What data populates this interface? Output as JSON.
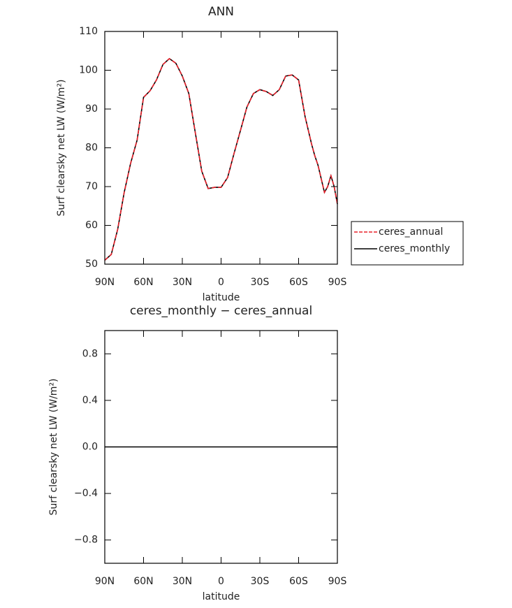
{
  "chart_data": [
    {
      "type": "line",
      "title": "ANN",
      "xlabel": "latitude",
      "ylabel": "Surf clearsky net LW (W/m²)",
      "x": [
        90,
        85,
        80,
        75,
        70,
        65,
        60,
        55,
        50,
        45,
        40,
        35,
        30,
        25,
        20,
        15,
        10,
        5,
        0,
        -5,
        -10,
        -15,
        -20,
        -25,
        -30,
        -35,
        -40,
        -45,
        -50,
        -55,
        -60,
        -65,
        -70,
        -72.5,
        -75,
        -77.5,
        -80,
        -82.5,
        -85,
        -87.5,
        -90
      ],
      "series": [
        {
          "name": "ceres_annual",
          "color": "#e8202a",
          "linestyle": "dashed",
          "values": [
            51,
            52.5,
            59,
            68.5,
            76,
            82,
            93,
            94.7,
            97.5,
            101.5,
            103,
            101.8,
            98.5,
            94,
            84,
            74,
            69.5,
            69.8,
            69.8,
            72.3,
            78.5,
            84.5,
            90.5,
            94,
            95,
            94.5,
            93.5,
            95,
            98.5,
            98.8,
            97.5,
            88,
            81,
            78,
            75.5,
            72,
            68.5,
            70,
            72.8,
            70,
            65.5
          ]
        },
        {
          "name": "ceres_monthly",
          "color": "#000000",
          "linestyle": "solid",
          "values": [
            51,
            52.5,
            59,
            68.5,
            76,
            82,
            93,
            94.7,
            97.5,
            101.5,
            103,
            101.8,
            98.5,
            94,
            84,
            74,
            69.5,
            69.8,
            69.8,
            72.3,
            78.5,
            84.5,
            90.5,
            94,
            95,
            94.5,
            93.5,
            95,
            98.5,
            98.8,
            97.5,
            88,
            81,
            78,
            75.5,
            72,
            68.5,
            70,
            72.8,
            70,
            65.5
          ]
        }
      ],
      "xlim": [
        90,
        -90
      ],
      "xticks": [
        {
          "value": 90,
          "label": "90N"
        },
        {
          "value": 60,
          "label": "60N"
        },
        {
          "value": 30,
          "label": "30N"
        },
        0,
        {
          "value": -30,
          "label": "30S"
        },
        {
          "value": -60,
          "label": "60S"
        },
        {
          "value": -90,
          "label": "90S"
        }
      ],
      "ylim": [
        50,
        110
      ],
      "yticks": [
        50,
        60,
        70,
        80,
        90,
        100,
        110
      ],
      "legend": "right"
    },
    {
      "type": "line",
      "title": "ceres_monthly − ceres_annual",
      "xlabel": "latitude",
      "ylabel": "Surf clearsky net LW (W/m²)",
      "x": [
        90,
        -90
      ],
      "values": [
        0,
        0
      ],
      "color": "#000000",
      "xlim": [
        90,
        -90
      ],
      "xticks": [
        {
          "value": 90,
          "label": "90N"
        },
        {
          "value": 60,
          "label": "60N"
        },
        {
          "value": 30,
          "label": "30N"
        },
        0,
        {
          "value": -30,
          "label": "30S"
        },
        {
          "value": -60,
          "label": "60S"
        },
        {
          "value": -90,
          "label": "90S"
        }
      ],
      "ylim": [
        -1,
        1
      ],
      "yticks": [
        {
          "value": -0.8,
          "label": "−0.8"
        },
        {
          "value": -0.4,
          "label": "−0.4"
        },
        {
          "value": 0,
          "label": "0.0"
        },
        0.4,
        0.8
      ]
    }
  ]
}
